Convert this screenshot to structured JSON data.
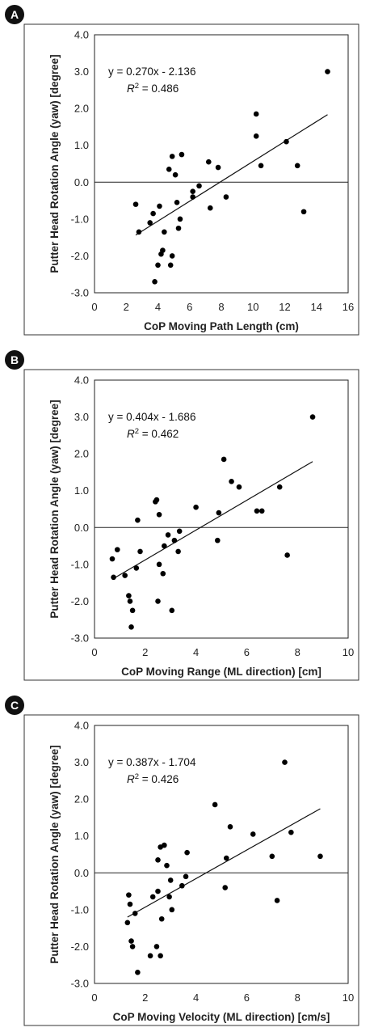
{
  "chart_data": [
    {
      "type": "scatter",
      "panel_label": "A",
      "xlabel": "CoP Moving Path Length (cm)",
      "ylabel": "Putter Head Rotation Angle (yaw) [degree]",
      "xlim": [
        0,
        16
      ],
      "ylim": [
        -3.0,
        4.0
      ],
      "xticks": [
        "0",
        "2",
        "4",
        "6",
        "8",
        "10",
        "12",
        "14",
        "16"
      ],
      "yticks": [
        "4.0",
        "3.0",
        "2.0",
        "1.0",
        "0.0",
        "-1.0",
        "-2.0",
        "-3.0"
      ],
      "equation": "y = 0.270x - 2.136",
      "r2_prefix": "R",
      "r2_sup": "2",
      "r2_value": " = 0.486",
      "fit": {
        "slope": 0.27,
        "intercept": -2.136,
        "x_range": [
          2.6,
          14.7
        ]
      },
      "points": [
        [
          2.6,
          -0.6
        ],
        [
          2.8,
          -1.35
        ],
        [
          3.5,
          -1.1
        ],
        [
          3.7,
          -0.85
        ],
        [
          3.8,
          -2.7
        ],
        [
          4.0,
          -2.25
        ],
        [
          4.1,
          -0.65
        ],
        [
          4.2,
          -1.95
        ],
        [
          4.3,
          -1.85
        ],
        [
          4.4,
          -1.35
        ],
        [
          4.7,
          0.35
        ],
        [
          4.8,
          -2.25
        ],
        [
          4.9,
          -2.0
        ],
        [
          4.9,
          0.7
        ],
        [
          5.1,
          0.2
        ],
        [
          5.2,
          -0.55
        ],
        [
          5.3,
          -1.25
        ],
        [
          5.4,
          -1.0
        ],
        [
          5.5,
          0.75
        ],
        [
          6.2,
          -0.25
        ],
        [
          6.2,
          -0.4
        ],
        [
          6.6,
          -0.1
        ],
        [
          7.2,
          0.55
        ],
        [
          7.3,
          -0.7
        ],
        [
          7.8,
          0.4
        ],
        [
          8.3,
          -0.4
        ],
        [
          10.2,
          1.85
        ],
        [
          10.2,
          1.25
        ],
        [
          10.5,
          0.45
        ],
        [
          12.1,
          1.1
        ],
        [
          12.8,
          0.45
        ],
        [
          13.2,
          -0.8
        ],
        [
          14.7,
          3.0
        ]
      ]
    },
    {
      "type": "scatter",
      "panel_label": "B",
      "xlabel": "CoP Moving Range (ML direction) [cm]",
      "ylabel": "Putter Head Rotation Angle (yaw) [degree]",
      "xlim": [
        0,
        10
      ],
      "ylim": [
        -3.0,
        4.0
      ],
      "xticks": [
        "0",
        "2",
        "4",
        "6",
        "8",
        "10"
      ],
      "yticks": [
        "4.0",
        "3.0",
        "2.0",
        "1.0",
        "0.0",
        "-1.0",
        "-2.0",
        "-3.0"
      ],
      "equation": "y = 0.404x - 1.686",
      "r2_prefix": "R",
      "r2_sup": "2",
      "r2_value": " = 0.462",
      "fit": {
        "slope": 0.404,
        "intercept": -1.686,
        "x_range": [
          0.7,
          8.6
        ]
      },
      "points": [
        [
          0.7,
          -0.85
        ],
        [
          0.75,
          -1.35
        ],
        [
          0.9,
          -0.6
        ],
        [
          1.2,
          -1.3
        ],
        [
          1.35,
          -1.85
        ],
        [
          1.4,
          -2.0
        ],
        [
          1.45,
          -2.7
        ],
        [
          1.5,
          -2.25
        ],
        [
          1.65,
          -1.1
        ],
        [
          1.7,
          0.2
        ],
        [
          1.8,
          -0.65
        ],
        [
          2.4,
          0.7
        ],
        [
          2.45,
          0.75
        ],
        [
          2.5,
          -2.0
        ],
        [
          2.55,
          0.35
        ],
        [
          2.55,
          -1.0
        ],
        [
          2.7,
          -1.25
        ],
        [
          2.75,
          -0.5
        ],
        [
          2.9,
          -0.2
        ],
        [
          3.05,
          -2.25
        ],
        [
          3.15,
          -0.35
        ],
        [
          3.3,
          -0.65
        ],
        [
          3.35,
          -0.1
        ],
        [
          4.0,
          0.55
        ],
        [
          4.85,
          -0.35
        ],
        [
          4.9,
          0.4
        ],
        [
          5.1,
          1.85
        ],
        [
          5.4,
          1.25
        ],
        [
          5.7,
          1.1
        ],
        [
          6.4,
          0.45
        ],
        [
          6.6,
          0.45
        ],
        [
          7.3,
          1.1
        ],
        [
          7.6,
          -0.75
        ],
        [
          8.6,
          3.0
        ]
      ]
    },
    {
      "type": "scatter",
      "panel_label": "C",
      "xlabel": "CoP Moving Velocity (ML direction) [cm/s]",
      "ylabel": "Putter Head Rotation Angle (yaw) [degree]",
      "xlim": [
        0,
        10
      ],
      "ylim": [
        -3.0,
        4.0
      ],
      "xticks": [
        "0",
        "2",
        "4",
        "6",
        "8",
        "10"
      ],
      "yticks": [
        "4.0",
        "3.0",
        "2.0",
        "1.0",
        "0.0",
        "-1.0",
        "-2.0",
        "-3.0"
      ],
      "equation": "y = 0.387x - 1.704",
      "r2_prefix": "R",
      "r2_sup": "2",
      "r2_value": " = 0.426",
      "fit": {
        "slope": 0.387,
        "intercept": -1.704,
        "x_range": [
          1.3,
          8.9
        ]
      },
      "points": [
        [
          1.3,
          -1.35
        ],
        [
          1.35,
          -0.6
        ],
        [
          1.4,
          -0.85
        ],
        [
          1.45,
          -1.85
        ],
        [
          1.5,
          -2.0
        ],
        [
          1.6,
          -1.1
        ],
        [
          1.7,
          -2.7
        ],
        [
          2.2,
          -2.25
        ],
        [
          2.3,
          -0.65
        ],
        [
          2.45,
          -2.0
        ],
        [
          2.5,
          0.35
        ],
        [
          2.5,
          -0.5
        ],
        [
          2.6,
          -2.25
        ],
        [
          2.6,
          0.7
        ],
        [
          2.65,
          -1.25
        ],
        [
          2.75,
          0.75
        ],
        [
          2.85,
          0.2
        ],
        [
          2.95,
          -0.65
        ],
        [
          3.0,
          -0.2
        ],
        [
          3.05,
          -1.0
        ],
        [
          3.45,
          -0.35
        ],
        [
          3.6,
          -0.1
        ],
        [
          3.65,
          0.55
        ],
        [
          4.75,
          1.85
        ],
        [
          5.15,
          -0.4
        ],
        [
          5.2,
          0.4
        ],
        [
          5.35,
          1.25
        ],
        [
          6.25,
          1.05
        ],
        [
          7.0,
          0.45
        ],
        [
          7.2,
          -0.75
        ],
        [
          7.5,
          3.0
        ],
        [
          7.75,
          1.1
        ],
        [
          8.9,
          0.45
        ]
      ]
    }
  ]
}
